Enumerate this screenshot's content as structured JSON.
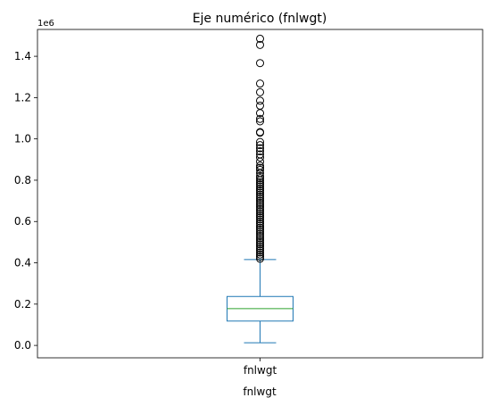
{
  "chart_data": {
    "type": "box",
    "title": "Eje numérico (fnlwgt)",
    "xlabel": "fnlwgt",
    "ylabel": "",
    "y_scale_label": "1e6",
    "categories": [
      "fnlwgt"
    ],
    "ylim": [
      -0.06,
      1.53
    ],
    "yticks": [
      0.0,
      0.2,
      0.4,
      0.6,
      0.8,
      1.0,
      1.2,
      1.4
    ],
    "ytick_labels": [
      "0.0",
      "0.2",
      "0.4",
      "0.6",
      "0.8",
      "1.0",
      "1.2",
      "1.4"
    ],
    "grid": false,
    "box": {
      "whisker_low": 0.013,
      "q1": 0.118,
      "median": 0.178,
      "q3": 0.237,
      "whisker_high": 0.416,
      "outliers": [
        1.485,
        1.455,
        1.367,
        1.268,
        1.226,
        1.185,
        1.161,
        1.125,
        1.097,
        1.085,
        1.033,
        1.03,
        0.985,
        0.97,
        0.955,
        0.94,
        0.925,
        0.91,
        0.89,
        0.87,
        0.86,
        0.85,
        0.835,
        0.82,
        0.81,
        0.8,
        0.79,
        0.78,
        0.77,
        0.76,
        0.75,
        0.74,
        0.73,
        0.72,
        0.71,
        0.7,
        0.69,
        0.68,
        0.67,
        0.66,
        0.65,
        0.64,
        0.63,
        0.62,
        0.61,
        0.6,
        0.59,
        0.58,
        0.57,
        0.56,
        0.55,
        0.54,
        0.53,
        0.52,
        0.51,
        0.5,
        0.49,
        0.48,
        0.47,
        0.46,
        0.45,
        0.44,
        0.43,
        0.42
      ]
    },
    "colors": {
      "box": "#1f77b4",
      "median": "#2ca02c",
      "outlier_edge": "#000000",
      "axes": "#000000"
    }
  }
}
